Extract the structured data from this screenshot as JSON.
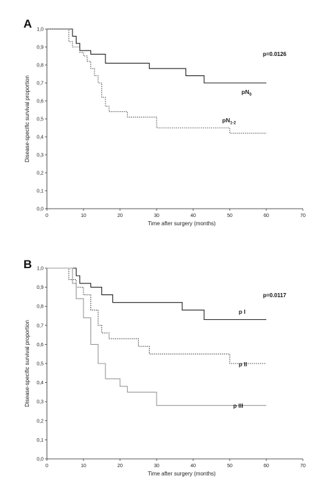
{
  "chart_data": [
    {
      "type": "line",
      "panel": "A",
      "p_value": "p=0.0126",
      "xlabel": "Time after surgery (months)",
      "ylabel": "Disease-specific survival proportion",
      "xlim": [
        0,
        70
      ],
      "ylim": [
        0,
        1
      ],
      "xticks": [
        "0",
        "10",
        "20",
        "30",
        "40",
        "50",
        "60",
        "70"
      ],
      "yticks": [
        "0,0",
        "0,1",
        "0,2",
        "0,3",
        "0,4",
        "0,5",
        "0,6",
        "0,7",
        "0,8",
        "0,9",
        "1,0"
      ],
      "series": [
        {
          "name": "pN",
          "subscript": "0",
          "style": "solid",
          "color": "#222222",
          "points": [
            [
              0,
              1.0
            ],
            [
              6,
              1.0
            ],
            [
              7,
              0.96
            ],
            [
              8,
              0.92
            ],
            [
              9,
              0.88
            ],
            [
              12,
              0.86
            ],
            [
              16,
              0.81
            ],
            [
              28,
              0.78
            ],
            [
              38,
              0.74
            ],
            [
              43,
              0.7
            ],
            [
              60,
              0.7
            ]
          ]
        },
        {
          "name": "pN",
          "subscript": "1-2",
          "style": "dotted",
          "color": "#555555",
          "points": [
            [
              0,
              1.0
            ],
            [
              5,
              1.0
            ],
            [
              6,
              0.93
            ],
            [
              7,
              0.9
            ],
            [
              9,
              0.87
            ],
            [
              10,
              0.85
            ],
            [
              11,
              0.82
            ],
            [
              12,
              0.78
            ],
            [
              13,
              0.74
            ],
            [
              14,
              0.7
            ],
            [
              15,
              0.62
            ],
            [
              16,
              0.57
            ],
            [
              17,
              0.54
            ],
            [
              22,
              0.51
            ],
            [
              30,
              0.45
            ],
            [
              50,
              0.42
            ],
            [
              60,
              0.42
            ]
          ]
        }
      ]
    },
    {
      "type": "line",
      "panel": "B",
      "p_value": "p=0.0117",
      "xlabel": "Time after surgery (months)",
      "ylabel": "Disease-specific survival proportion",
      "xlim": [
        0,
        70
      ],
      "ylim": [
        0,
        1
      ],
      "xticks": [
        "0",
        "10",
        "20",
        "30",
        "40",
        "50",
        "60",
        "70"
      ],
      "yticks": [
        "0,0",
        "0,1",
        "0,2",
        "0,3",
        "0,4",
        "0,5",
        "0,6",
        "0,7",
        "0,8",
        "0,9",
        "1,0"
      ],
      "series": [
        {
          "name": "p I",
          "subscript": "",
          "style": "solid",
          "color": "#222222",
          "points": [
            [
              0,
              1.0
            ],
            [
              7,
              1.0
            ],
            [
              8,
              0.96
            ],
            [
              9,
              0.92
            ],
            [
              12,
              0.9
            ],
            [
              15,
              0.86
            ],
            [
              18,
              0.82
            ],
            [
              37,
              0.78
            ],
            [
              43,
              0.73
            ],
            [
              60,
              0.73
            ]
          ]
        },
        {
          "name": "p II",
          "subscript": "",
          "style": "dotted",
          "color": "#444444",
          "points": [
            [
              0,
              1.0
            ],
            [
              5,
              1.0
            ],
            [
              6,
              0.94
            ],
            [
              8,
              0.9
            ],
            [
              10,
              0.86
            ],
            [
              12,
              0.78
            ],
            [
              14,
              0.7
            ],
            [
              15,
              0.66
            ],
            [
              17,
              0.63
            ],
            [
              25,
              0.59
            ],
            [
              28,
              0.55
            ],
            [
              50,
              0.5
            ],
            [
              60,
              0.5
            ]
          ]
        },
        {
          "name": "p III",
          "subscript": "",
          "style": "solid",
          "color": "#999999",
          "points": [
            [
              0,
              1.0
            ],
            [
              6,
              1.0
            ],
            [
              7,
              0.92
            ],
            [
              8,
              0.84
            ],
            [
              10,
              0.74
            ],
            [
              12,
              0.6
            ],
            [
              14,
              0.5
            ],
            [
              16,
              0.42
            ],
            [
              20,
              0.38
            ],
            [
              22,
              0.35
            ],
            [
              30,
              0.28
            ],
            [
              60,
              0.28
            ]
          ]
        }
      ]
    }
  ]
}
